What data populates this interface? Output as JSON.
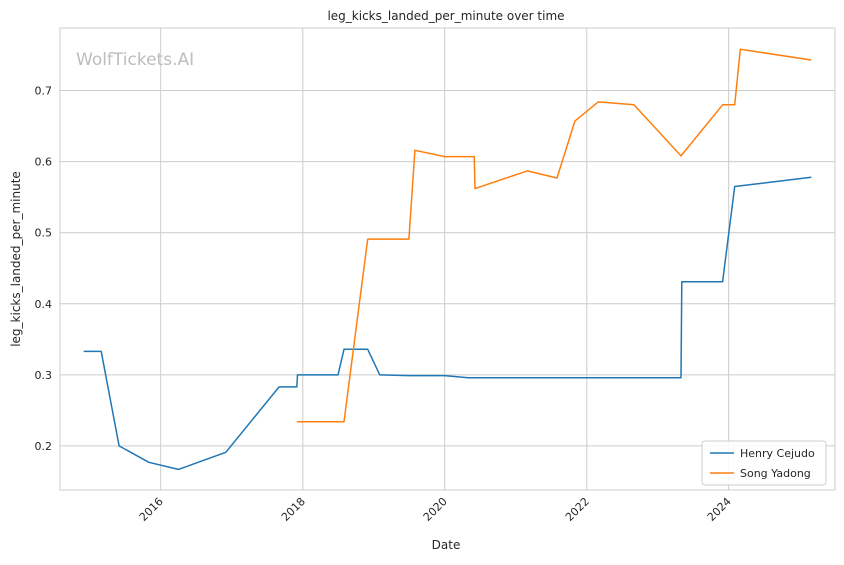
{
  "chart_data": {
    "type": "line",
    "title": "leg_kicks_landed_per_minute over time",
    "xlabel": "Date",
    "ylabel": "leg_kicks_landed_per_minute",
    "watermark": "WolfTickets.AI",
    "x_ticks": [
      "2016",
      "2018",
      "2020",
      "2022",
      "2024"
    ],
    "y_ticks": [
      "0.2",
      "0.3",
      "0.4",
      "0.5",
      "0.6",
      "0.7"
    ],
    "xlim": [
      "2014-08-01",
      "2025-07-01"
    ],
    "ylim": [
      0.138,
      0.788
    ],
    "grid": true,
    "legend_position": "bottom-right",
    "series": [
      {
        "name": "Henry Cejudo",
        "color": "#1f77b4",
        "points": [
          [
            "2014-12-01",
            0.333
          ],
          [
            "2015-03-01",
            0.333
          ],
          [
            "2015-06-01",
            0.2
          ],
          [
            "2015-11-01",
            0.177
          ],
          [
            "2016-04-01",
            0.167
          ],
          [
            "2016-12-01",
            0.191
          ],
          [
            "2017-09-01",
            0.283
          ],
          [
            "2017-12-01",
            0.283
          ],
          [
            "2017-12-05",
            0.3
          ],
          [
            "2018-07-01",
            0.3
          ],
          [
            "2018-08-01",
            0.336
          ],
          [
            "2018-12-01",
            0.336
          ],
          [
            "2019-02-01",
            0.3
          ],
          [
            "2019-07-01",
            0.299
          ],
          [
            "2020-01-01",
            0.299
          ],
          [
            "2020-05-01",
            0.296
          ],
          [
            "2023-05-01",
            0.296
          ],
          [
            "2023-05-05",
            0.431
          ],
          [
            "2023-12-01",
            0.431
          ],
          [
            "2024-02-01",
            0.565
          ],
          [
            "2025-03-01",
            0.578
          ]
        ]
      },
      {
        "name": "Song Yadong",
        "color": "#ff7f0e",
        "points": [
          [
            "2017-12-01",
            0.234
          ],
          [
            "2018-08-01",
            0.234
          ],
          [
            "2018-12-01",
            0.491
          ],
          [
            "2019-07-01",
            0.491
          ],
          [
            "2019-08-01",
            0.616
          ],
          [
            "2020-01-01",
            0.607
          ],
          [
            "2020-06-01",
            0.607
          ],
          [
            "2020-06-05",
            0.562
          ],
          [
            "2021-03-01",
            0.587
          ],
          [
            "2021-08-01",
            0.577
          ],
          [
            "2021-11-01",
            0.657
          ],
          [
            "2022-03-01",
            0.684
          ],
          [
            "2022-09-01",
            0.68
          ],
          [
            "2023-05-01",
            0.608
          ],
          [
            "2023-12-01",
            0.68
          ],
          [
            "2024-02-01",
            0.68
          ],
          [
            "2024-03-01",
            0.758
          ],
          [
            "2025-03-01",
            0.743
          ]
        ]
      }
    ]
  }
}
